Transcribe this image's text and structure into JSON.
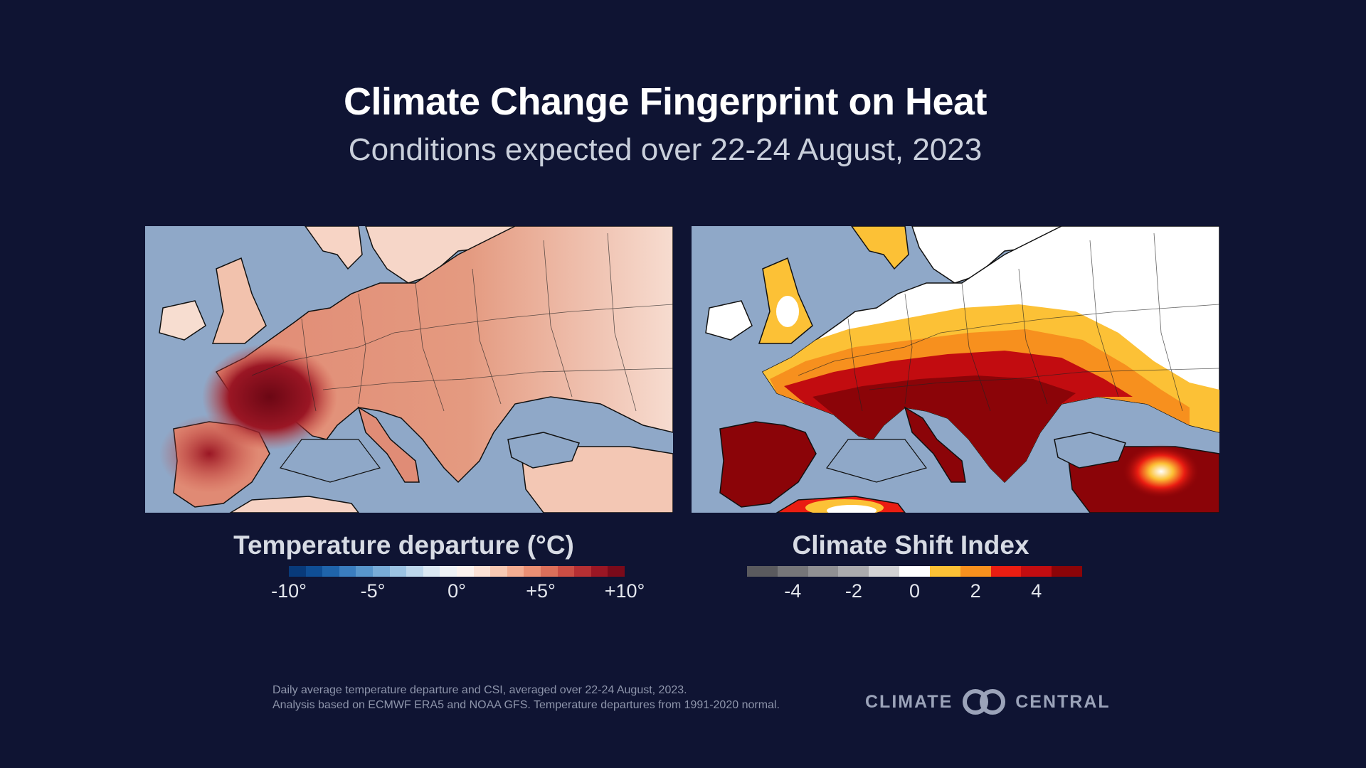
{
  "header": {
    "title": "Climate Change Fingerprint on Heat",
    "subtitle": "Conditions expected over 22-24 August, 2023"
  },
  "left_map": {
    "legend_title": "Temperature departure (°C)",
    "ticks": [
      "-10°",
      "-5°",
      "0°",
      "+5°",
      "+10°"
    ],
    "tick_values": [
      -10,
      -5,
      0,
      5,
      10
    ],
    "range": [
      -10,
      10
    ],
    "colors": [
      "#083a7a",
      "#0f4e95",
      "#1f64ab",
      "#3a7dbf",
      "#5896cc",
      "#78acd8",
      "#9cc3e3",
      "#bdd7ec",
      "#dbe8f3",
      "#eef2f6",
      "#fbf3ef",
      "#fbe2d6",
      "#f8c9b3",
      "#f3ad92",
      "#ea8f74",
      "#dc6f5a",
      "#cb4d44",
      "#b52f33",
      "#9a1624",
      "#7a0a1a"
    ]
  },
  "right_map": {
    "legend_title": "Climate Shift Index",
    "ticks": [
      "-4",
      "-2",
      "0",
      "2",
      "4"
    ],
    "tick_values": [
      -4,
      -2,
      0,
      2,
      4
    ],
    "range": [
      -5.5,
      5.5
    ],
    "colors": [
      "#5a5a5e",
      "#767679",
      "#909093",
      "#ababae",
      "#d2d2d4",
      "#ffffff",
      "#fcc136",
      "#f7901e",
      "#ea1d12",
      "#c20c10",
      "#8b0408"
    ]
  },
  "footer": {
    "footnote_line1": "Daily average temperature departure and CSI, averaged over 22-24 August, 2023.",
    "footnote_line2": "Analysis based on ECMWF ERA5 and NOAA GFS. Temperature departures from 1991-2020 normal.",
    "brand_left": "CLIMATE",
    "brand_right": "CENTRAL",
    "brand_color": "#9ba3b9"
  },
  "colors": {
    "background": "#0f1433",
    "ocean": "#8fa8c8"
  }
}
